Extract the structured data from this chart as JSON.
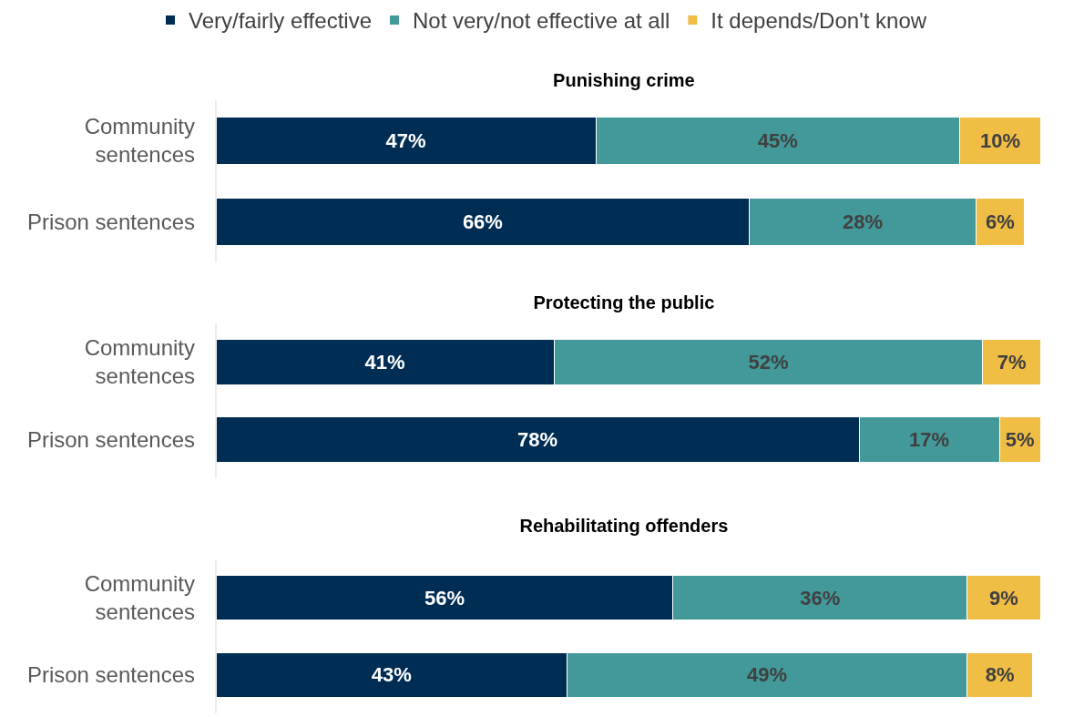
{
  "chart_data": [
    {
      "type": "bar",
      "title": "Punishing crime",
      "orientation": "horizontal",
      "stacked": true,
      "categories": [
        "Community sentences",
        "Prison sentences"
      ],
      "tick_labels": "y",
      "grid": false,
      "legend": "top",
      "series": [
        {
          "name": "Very/fairly effective",
          "color": "#002d54",
          "values": [
            47,
            66
          ],
          "value_labels": [
            "47%",
            "66%"
          ]
        },
        {
          "name": "Not very/not effective at all",
          "color": "#43999a",
          "values": [
            45,
            28
          ],
          "value_labels": [
            "45%",
            "28%"
          ]
        },
        {
          "name": "It depends/Don't know",
          "color": "#f0bd45",
          "values": [
            10,
            6
          ],
          "value_labels": [
            "10%",
            "6%"
          ]
        }
      ]
    },
    {
      "type": "bar",
      "title": "Protecting the public",
      "orientation": "horizontal",
      "stacked": true,
      "categories": [
        "Community sentences",
        "Prison sentences"
      ],
      "tick_labels": "y",
      "grid": false,
      "legend": false,
      "series": [
        {
          "color": "#002d54",
          "values": [
            41,
            78
          ],
          "value_labels": [
            "41%",
            "78%"
          ]
        },
        {
          "color": "#43999a",
          "values": [
            52,
            17
          ],
          "value_labels": [
            "52%",
            "17%"
          ]
        },
        {
          "color": "#f0bd45",
          "values": [
            7,
            5
          ],
          "value_labels": [
            "7%",
            "5%"
          ]
        }
      ]
    },
    {
      "type": "bar",
      "title": "Rehabilitating offenders",
      "orientation": "horizontal",
      "stacked": true,
      "categories": [
        "Community sentences",
        "Prison sentences"
      ],
      "tick_labels": "y",
      "grid": false,
      "legend": false,
      "series": [
        {
          "color": "#002d54",
          "values": [
            56,
            43
          ],
          "value_labels": [
            "56%",
            "43%"
          ]
        },
        {
          "color": "#43999a",
          "values": [
            36,
            49
          ],
          "value_labels": [
            "36%",
            "49%"
          ]
        },
        {
          "color": "#f0bd45",
          "values": [
            9,
            8
          ],
          "value_labels": [
            "9%",
            "8%"
          ]
        }
      ]
    }
  ]
}
